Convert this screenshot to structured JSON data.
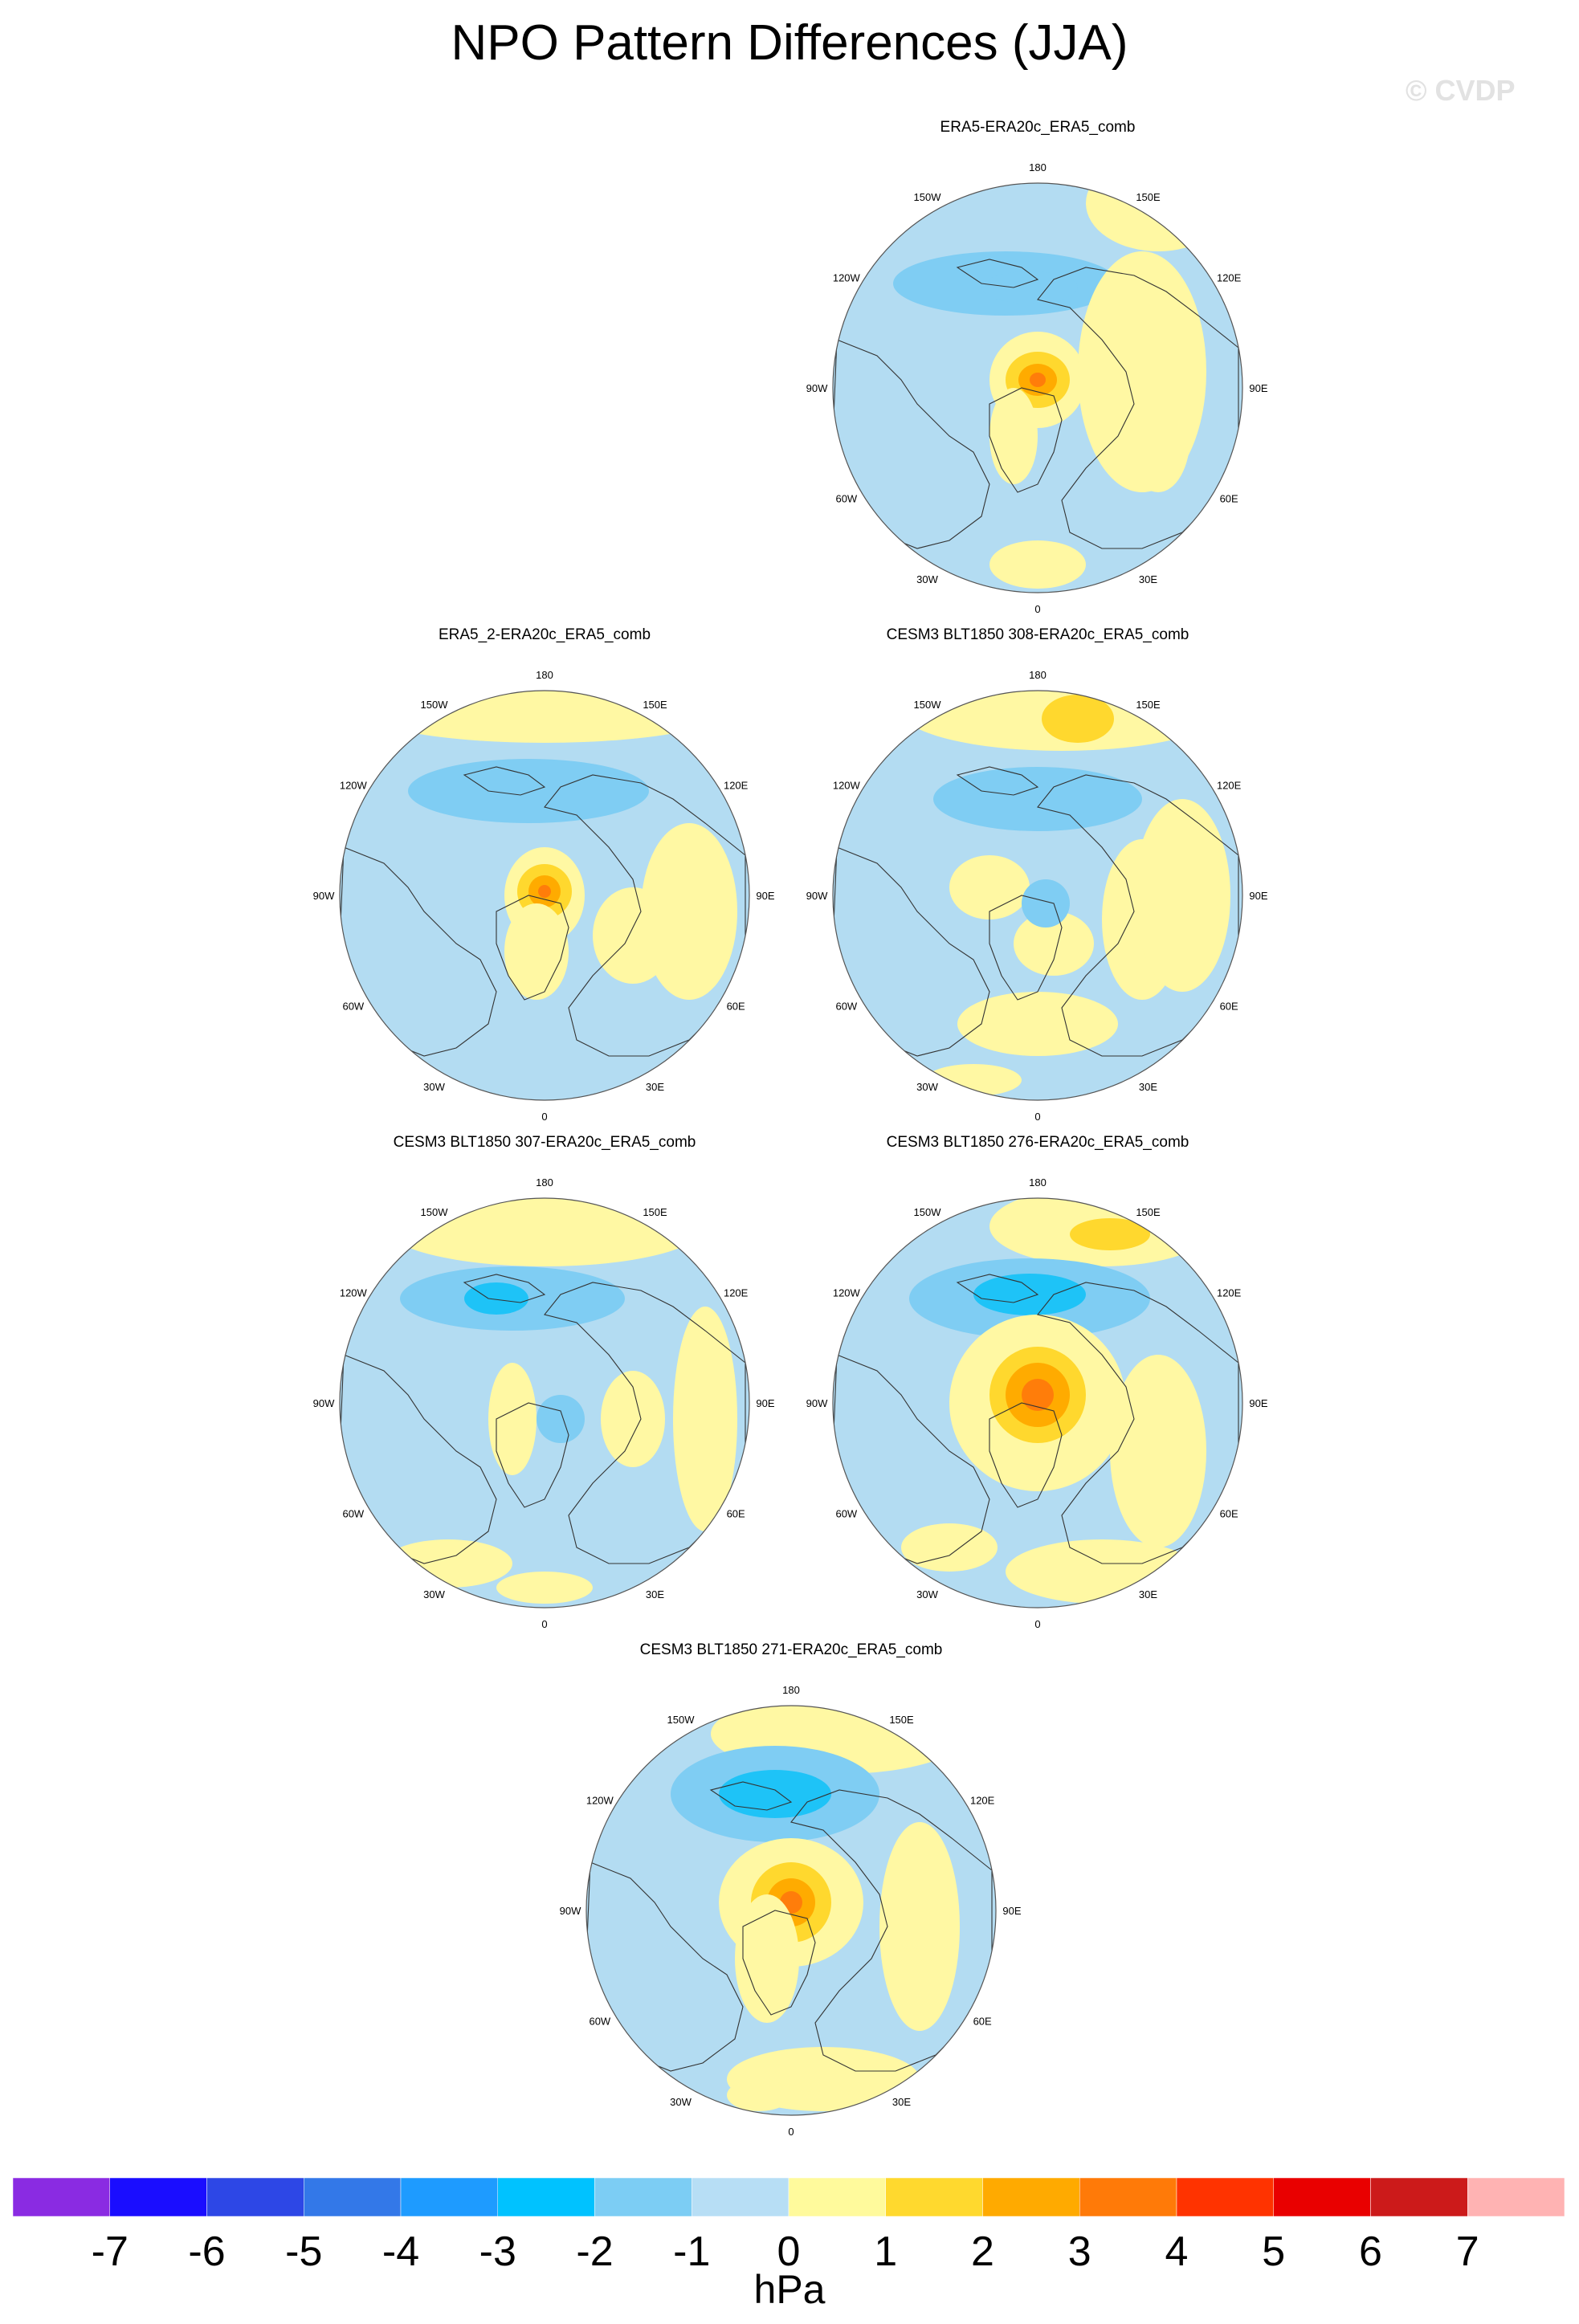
{
  "page": {
    "title": "NPO Pattern Differences (JJA)",
    "watermark": "© CVDP",
    "units": "hPa"
  },
  "colors": {
    "ocean_blue": "#b3dcf2",
    "land_line": "#333333",
    "neg1": "#7fcdf3",
    "neg2": "#1ec3f7",
    "neg3": "#1f9cf7",
    "pos0": "#fff8a3",
    "pos1": "#ffd82e",
    "pos2": "#ffab00",
    "pos3": "#ff7d0a"
  },
  "chart_data": {
    "type": "heatmap",
    "title": "NPO Pattern Differences (JJA)",
    "units": "hPa",
    "projection": "north polar stereographic",
    "lon_labels": [
      "180",
      "150E",
      "120E",
      "90E",
      "60E",
      "30E",
      "0",
      "30W",
      "60W",
      "90W",
      "120W",
      "150W"
    ],
    "colorbar": {
      "tick_labels": [
        "-7",
        "-6",
        "-5",
        "-4",
        "-3",
        "-2",
        "-1",
        "0",
        "1",
        "2",
        "3",
        "4",
        "5",
        "6",
        "7"
      ],
      "colors": [
        "#8a2be2",
        "#1a0dff",
        "#2d47e6",
        "#3378e8",
        "#1e9bff",
        "#00c2ff",
        "#7ccdf4",
        "#b7def5",
        "#fffa9c",
        "#ffd92e",
        "#ffaa00",
        "#ff7a08",
        "#ff3300",
        "#e90000",
        "#cc1a1a",
        "#ffb3b3"
      ]
    },
    "panels": [
      {
        "name": "ERA5-ERA20c_ERA5_comb",
        "min_level": -3,
        "max_level": 3
      },
      {
        "name": "ERA5_2-ERA20c_ERA5_comb",
        "min_level": -2,
        "max_level": 3
      },
      {
        "name": "CESM3 BLT1850 308-ERA20c_ERA5_comb",
        "min_level": -2,
        "max_level": 2
      },
      {
        "name": "CESM3 BLT1850 307-ERA20c_ERA5_comb",
        "min_level": -3,
        "max_level": 1
      },
      {
        "name": "CESM3 BLT1850 276-ERA20c_ERA5_comb",
        "min_level": -3,
        "max_level": 4
      },
      {
        "name": "CESM3 BLT1850 271-ERA20c_ERA5_comb",
        "min_level": -3,
        "max_level": 4
      }
    ]
  }
}
